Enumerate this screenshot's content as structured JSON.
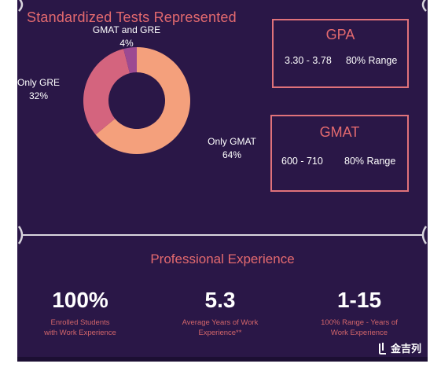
{
  "header": {
    "title": "Standardized Tests Represented"
  },
  "chart_data": {
    "type": "pie",
    "title": "Standardized Tests Represented",
    "categories": [
      "Only GMAT",
      "Only GRE",
      "GMAT and GRE"
    ],
    "values": [
      64,
      32,
      4
    ],
    "labels": {
      "only_gmat": "Only GMAT",
      "only_gmat_pct": "64%",
      "only_gre": "Only GRE",
      "only_gre_pct": "32%",
      "both": "GMAT and GRE",
      "both_pct": "4%"
    },
    "colors": [
      "#f4a07c",
      "#d4647e",
      "#9c4a92"
    ]
  },
  "gpa": {
    "title": "GPA",
    "range": "3.30 - 3.78",
    "label": "80% Range"
  },
  "gmat": {
    "title": "GMAT",
    "range": "600 - 710",
    "label": "80% Range"
  },
  "experience": {
    "title": "Professional Experience",
    "stats": [
      {
        "value": "100%",
        "caption1": "Enrolled Students",
        "caption2": "with Work Experience"
      },
      {
        "value": "5.3",
        "caption1": "Average Years of Work",
        "caption2": "Experience**"
      },
      {
        "value": "1-15",
        "caption1": "100% Range - Years of",
        "caption2": "Work Experience"
      }
    ]
  },
  "watermark": {
    "text": "金吉列"
  },
  "colors": {
    "background": "#2a1747",
    "accent": "#e46a6f"
  }
}
